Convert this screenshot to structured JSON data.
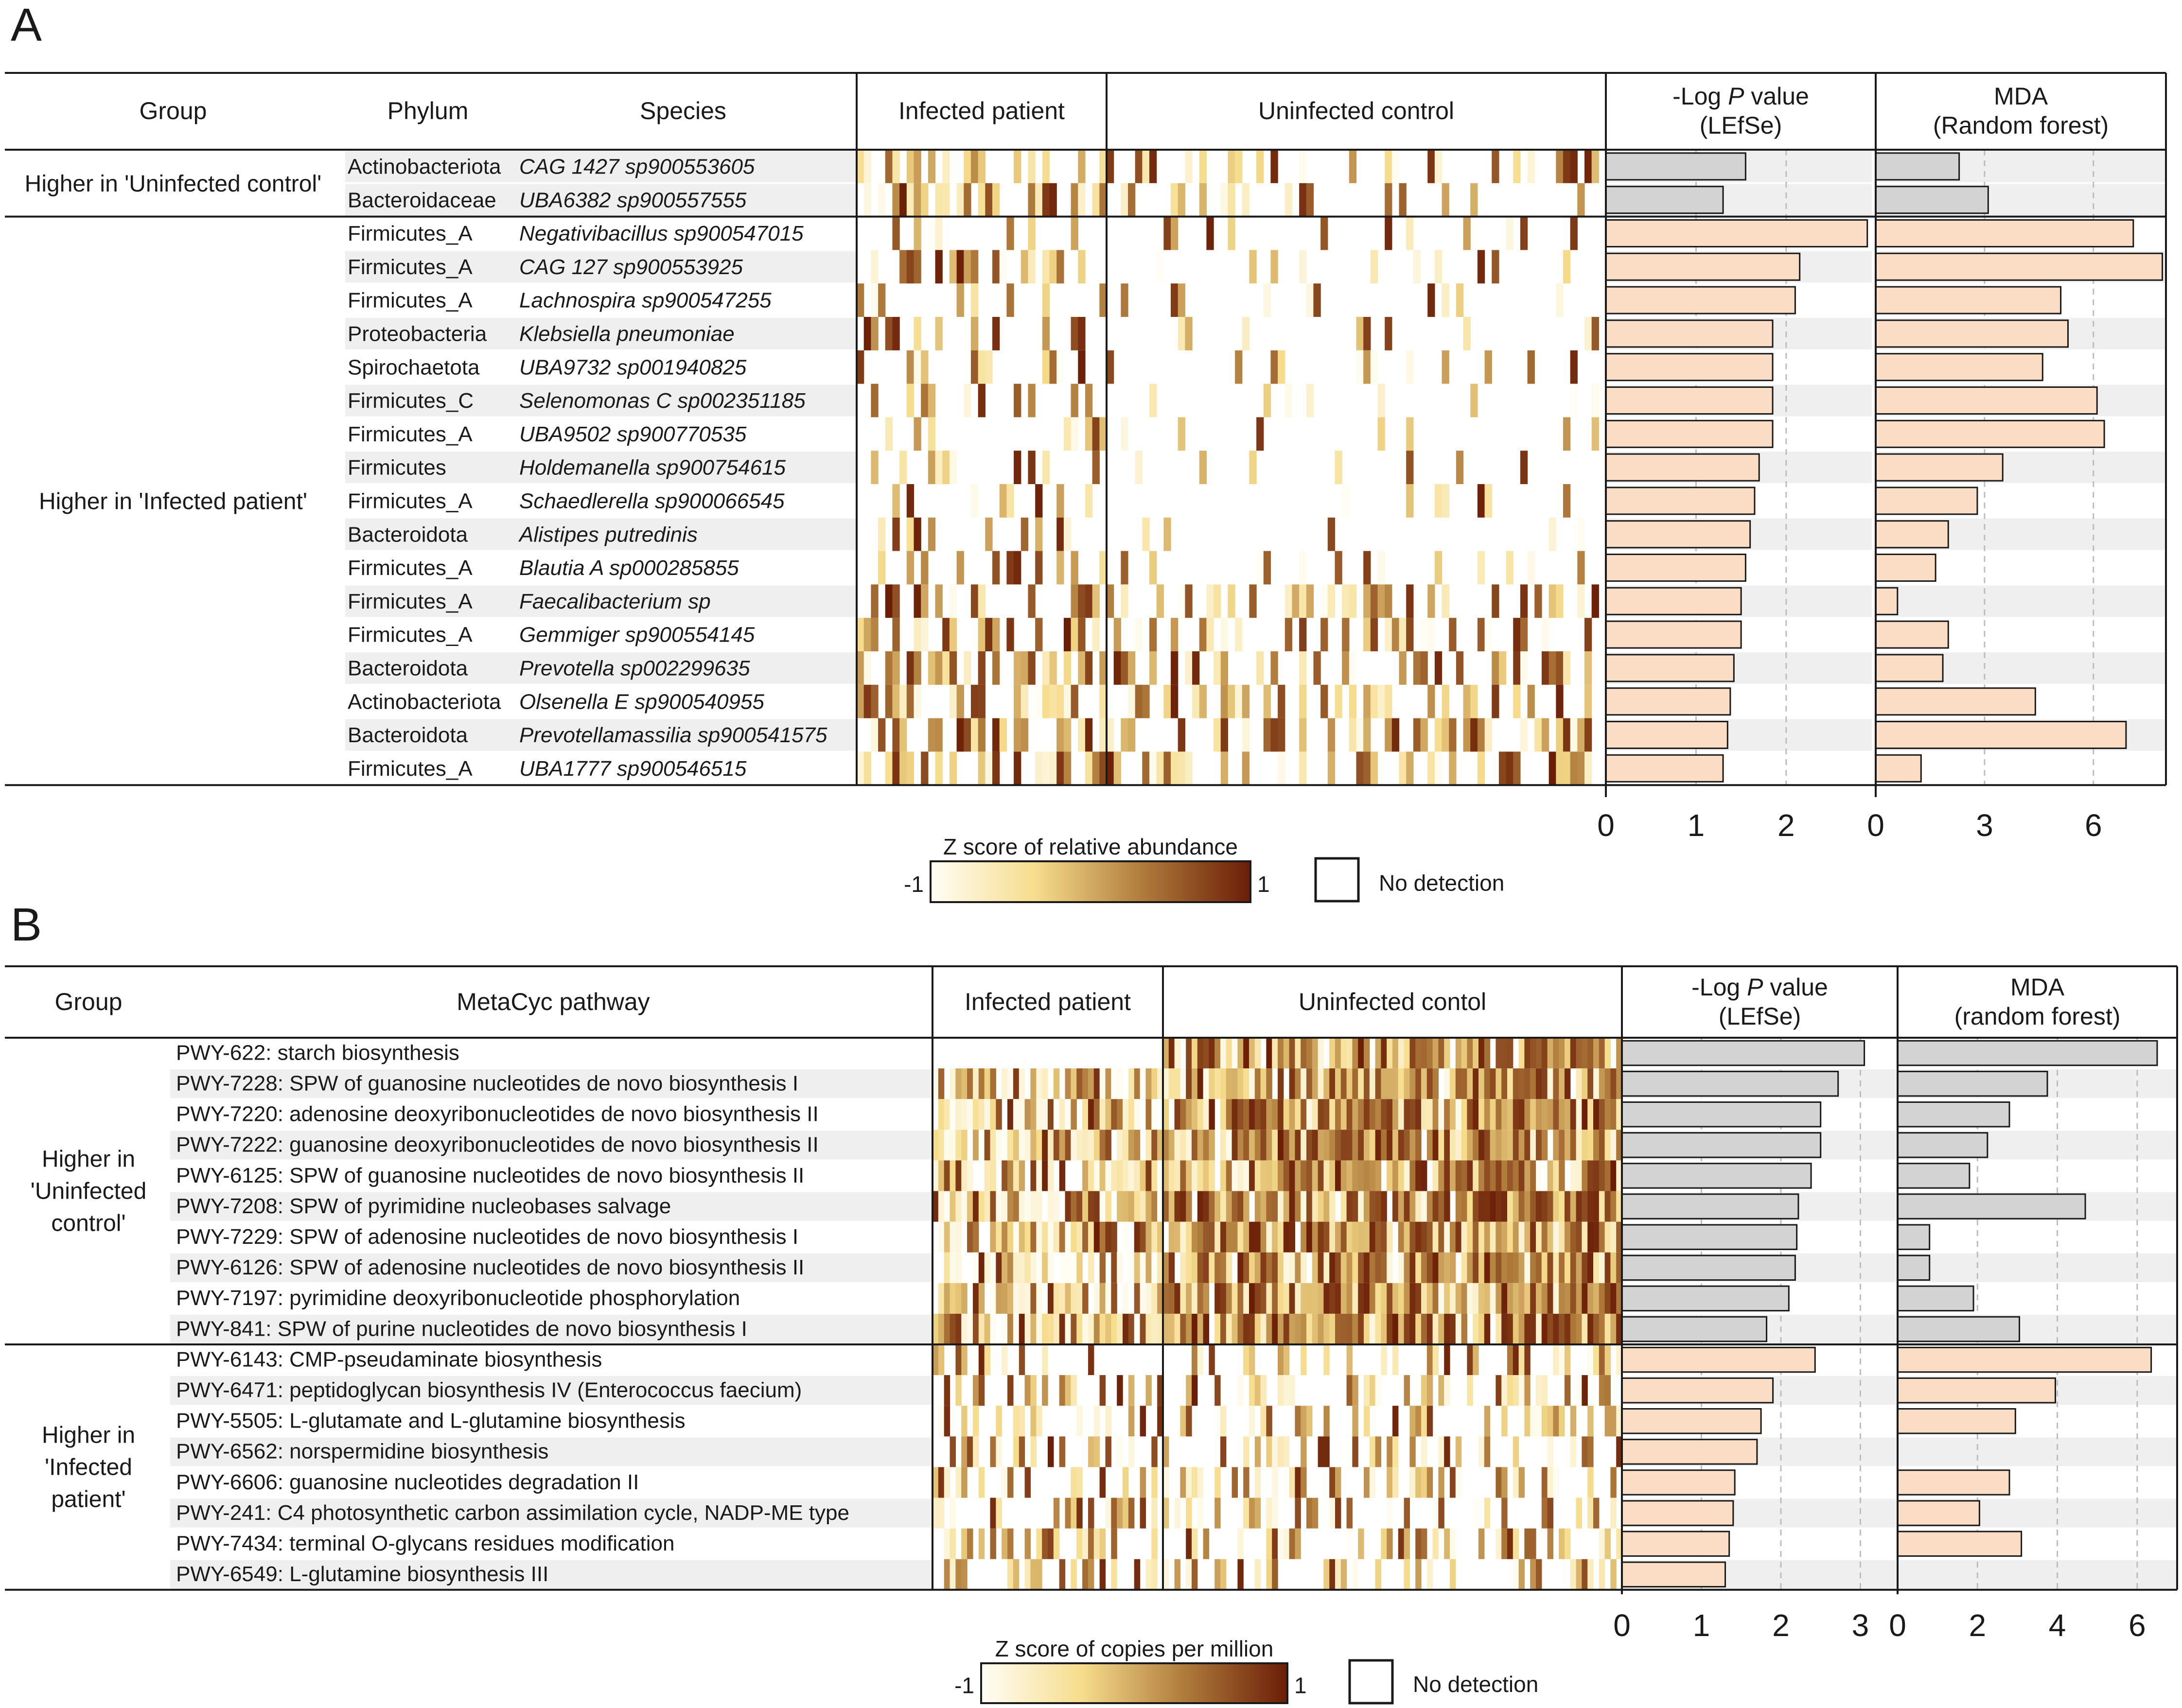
{
  "colors": {
    "heat_low": "#fffef6",
    "heat_mid": "#f6dc8c",
    "heat_mid2": "#b07c3c",
    "heat_high": "#6b1e06",
    "bar_uninfected": "#d3d3d3",
    "bar_infected": "#fbdcc5",
    "stripe": "#efefef"
  },
  "chart_data": [
    {
      "type": "heatmap+bar",
      "panel_label": "A",
      "headers": {
        "group": "Group",
        "phylum": "Phylum",
        "species": "Species",
        "infected": "Infected patient",
        "uninfected": "Uninfected control",
        "lefse_line1": "-Log",
        "lefse_italic": "P",
        "lefse_line1b": "value",
        "lefse_line2": "(LEfSe)",
        "mda_line1": "MDA",
        "mda_line2": "(Random forest)"
      },
      "groups": [
        {
          "label": "Higher in 'Uninfected control'",
          "class": "uninfected",
          "rows": [
            0,
            1
          ]
        },
        {
          "label": "Higher in 'Infected patient'",
          "class": "infected",
          "rows": [
            2,
            18
          ]
        }
      ],
      "rows": [
        {
          "phylum": "Actinobacteriota",
          "species": "CAG 1427 sp900553605",
          "neg_log_p": 1.55,
          "mda": 2.3
        },
        {
          "phylum": "Bacteroidaceae",
          "species": "UBA6382 sp900557555",
          "neg_log_p": 1.3,
          "mda": 3.1
        },
        {
          "phylum": "Firmicutes_A",
          "species": "Negativibacillus sp900547015",
          "neg_log_p": 2.9,
          "mda": 7.1
        },
        {
          "phylum": "Firmicutes_A",
          "species": "CAG 127 sp900553925",
          "neg_log_p": 2.15,
          "mda": 7.9
        },
        {
          "phylum": "Firmicutes_A",
          "species": "Lachnospira sp900547255",
          "neg_log_p": 2.1,
          "mda": 5.1
        },
        {
          "phylum": "Proteobacteria",
          "species": "Klebsiella pneumoniae",
          "neg_log_p": 1.85,
          "mda": 5.3
        },
        {
          "phylum": "Spirochaetota",
          "species": "UBA9732 sp001940825",
          "neg_log_p": 1.85,
          "mda": 4.6
        },
        {
          "phylum": "Firmicutes_C",
          "species": "Selenomonas C sp002351185",
          "neg_log_p": 1.85,
          "mda": 6.1
        },
        {
          "phylum": "Firmicutes_A",
          "species": "UBA9502 sp900770535",
          "neg_log_p": 1.85,
          "mda": 6.3
        },
        {
          "phylum": "Firmicutes",
          "species": "Holdemanella sp900754615",
          "neg_log_p": 1.7,
          "mda": 3.5
        },
        {
          "phylum": "Firmicutes_A",
          "species": "Schaedlerella sp900066545",
          "neg_log_p": 1.65,
          "mda": 2.8
        },
        {
          "phylum": "Bacteroidota",
          "species": "Alistipes putredinis",
          "neg_log_p": 1.6,
          "mda": 2.0
        },
        {
          "phylum": "Firmicutes_A",
          "species": "Blautia A sp000285855",
          "neg_log_p": 1.55,
          "mda": 1.65
        },
        {
          "phylum": "Firmicutes_A",
          "species": "Faecalibacterium sp",
          "neg_log_p": 1.5,
          "mda": 0.6
        },
        {
          "phylum": "Firmicutes_A",
          "species": "Gemmiger sp900554145",
          "neg_log_p": 1.5,
          "mda": 2.0
        },
        {
          "phylum": "Bacteroidota",
          "species": "Prevotella sp002299635",
          "neg_log_p": 1.42,
          "mda": 1.85
        },
        {
          "phylum": "Actinobacteriota",
          "species": "Olsenella E sp900540955",
          "neg_log_p": 1.38,
          "mda": 4.4
        },
        {
          "phylum": "Bacteroidota",
          "species": "Prevotellamassilia sp900541575",
          "neg_log_p": 1.35,
          "mda": 6.9
        },
        {
          "phylum": "Firmicutes_A",
          "species": "UBA1777 sp900546515",
          "neg_log_p": 1.3,
          "mda": 1.25
        }
      ],
      "lefse_axis": {
        "ticks": [
          "0",
          "1",
          "2"
        ],
        "xlim": [
          0,
          2.95
        ]
      },
      "mda_axis": {
        "ticks": [
          "0",
          "3",
          "6"
        ],
        "xlim": [
          0,
          8.0
        ]
      },
      "heatmap_columns": {
        "infected": 35,
        "uninfected": 70
      },
      "legend": {
        "title": "Z score of relative abundance",
        "min_label": "-1",
        "max_label": "1",
        "no_detection_label": "No detection"
      }
    },
    {
      "type": "heatmap+bar",
      "panel_label": "B",
      "headers": {
        "group": "Group",
        "pathway": "MetaCyc pathway",
        "infected": "Infected patient",
        "uninfected": "Uninfected contol",
        "lefse_line1": "-Log",
        "lefse_italic": "P",
        "lefse_line1b": "value",
        "lefse_line2": "(LEfSe)",
        "mda_line1": "MDA",
        "mda_line2": "(random forest)"
      },
      "groups": [
        {
          "label_lines": [
            "Higher in",
            "'Uninfected",
            "control'"
          ],
          "class": "uninfected",
          "rows": [
            0,
            9
          ]
        },
        {
          "label_lines": [
            "Higher in",
            "'Infected",
            "patient'"
          ],
          "class": "infected",
          "rows": [
            10,
            17
          ]
        }
      ],
      "rows": [
        {
          "pathway": "PWY-622: starch biosynthesis",
          "neg_log_p": 3.05,
          "mda": 6.5
        },
        {
          "pathway": "PWY-7228: SPW of guanosine nucleotides de novo biosynthesis I",
          "neg_log_p": 2.72,
          "mda": 3.75
        },
        {
          "pathway": "PWY-7220: adenosine deoxyribonucleotides de novo biosynthesis II",
          "neg_log_p": 2.5,
          "mda": 2.8
        },
        {
          "pathway": "PWY-7222: guanosine deoxyribonucleotides de novo biosynthesis II",
          "neg_log_p": 2.5,
          "mda": 2.25
        },
        {
          "pathway": "PWY-6125: SPW of guanosine nucleotides de novo biosynthesis II",
          "neg_log_p": 2.38,
          "mda": 1.8
        },
        {
          "pathway": "PWY-7208: SPW of pyrimidine nucleobases salvage",
          "neg_log_p": 2.22,
          "mda": 4.7
        },
        {
          "pathway": "PWY-7229: SPW of adenosine nucleotides de novo biosynthesis I",
          "neg_log_p": 2.2,
          "mda": 0.8
        },
        {
          "pathway": "PWY-6126: SPW of adenosine nucleotides de novo biosynthesis II",
          "neg_log_p": 2.18,
          "mda": 0.8
        },
        {
          "pathway": "PWY-7197: pyrimidine deoxyribonucleotide phosphorylation",
          "neg_log_p": 2.1,
          "mda": 1.9
        },
        {
          "pathway": "PWY-841: SPW of purine nucleotides de novo biosynthesis I",
          "neg_log_p": 1.82,
          "mda": 3.05
        },
        {
          "pathway": "PWY-6143: CMP-pseudaminate biosynthesis",
          "neg_log_p": 2.43,
          "mda": 6.35
        },
        {
          "pathway": "PWY-6471: peptidoglycan biosynthesis IV (Enterococcus faecium)",
          "neg_log_p": 1.9,
          "mda": 3.95
        },
        {
          "pathway": "PWY-5505: L-glutamate and L-glutamine biosynthesis",
          "neg_log_p": 1.75,
          "mda": 2.95
        },
        {
          "pathway": "PWY-6562: norspermidine biosynthesis",
          "neg_log_p": 1.7,
          "mda": 0
        },
        {
          "pathway": "PWY-6606: guanosine nucleotides degradation II",
          "neg_log_p": 1.42,
          "mda": 2.8
        },
        {
          "pathway": "PWY-241: C4 photosynthetic carbon assimilation cycle, NADP-ME type",
          "neg_log_p": 1.4,
          "mda": 2.05
        },
        {
          "pathway": "PWY-7434: terminal O-glycans residues modification",
          "neg_log_p": 1.35,
          "mda": 3.1
        },
        {
          "pathway": "PWY-6549: L-glutamine biosynthesis III",
          "neg_log_p": 1.3,
          "mda": 0
        }
      ],
      "lefse_axis": {
        "ticks": [
          "0",
          "1",
          "2",
          "3"
        ],
        "xlim": [
          0,
          3.45
        ]
      },
      "mda_axis": {
        "ticks": [
          "0",
          "2",
          "4",
          "6"
        ],
        "xlim": [
          0,
          7.0
        ]
      },
      "heatmap_columns": {
        "infected": 40,
        "uninfected": 80
      },
      "legend": {
        "title": "Z score of copies per million",
        "min_label": "-1",
        "max_label": "1",
        "no_detection_label": "No detection"
      }
    }
  ]
}
